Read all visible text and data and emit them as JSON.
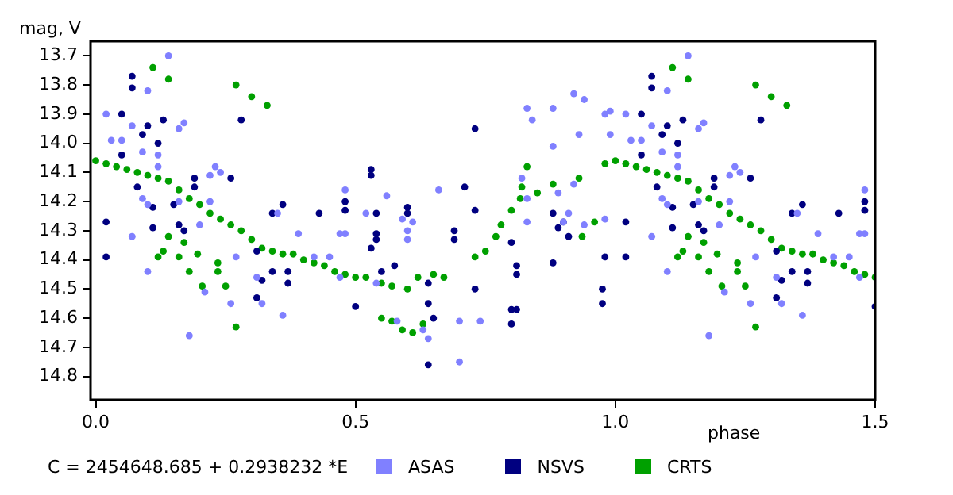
{
  "chart_data": {
    "type": "scatter",
    "xlabel": "phase",
    "ylabel": "mag, V",
    "xlim": [
      -0.01,
      1.5
    ],
    "xticks": [
      {
        "value": 0,
        "label": "0.0"
      },
      {
        "value": 0.5,
        "label": "0.5"
      },
      {
        "value": 1,
        "label": "1.0"
      },
      {
        "value": 1.5,
        "label": "1.5"
      }
    ],
    "ylim": [
      14.88,
      13.65
    ],
    "yticks": [
      13.7,
      13.8,
      13.9,
      {
        "value": 14,
        "label": "14.0"
      },
      14.1,
      14.2,
      14.3,
      14.4,
      14.5,
      14.6,
      14.7,
      14.8
    ],
    "grid": false,
    "legend": "bottom",
    "marker": "circle",
    "annotations": [
      "C = 2454648.685 + 0.2938232 *E"
    ],
    "series": [
      {
        "name": "ASAS",
        "color": "#8080ff",
        "x": [
          0.14,
          0.1,
          0.02,
          0.03,
          0.05,
          0.07,
          0.09,
          0.12,
          0.12,
          0.16,
          0.17,
          0.09,
          0.1,
          0.1,
          0.2,
          0.18,
          0.21,
          0.22,
          0.23,
          0.24,
          0.22,
          0.27,
          0.26,
          0.31,
          0.32,
          0.35,
          0.36,
          0.39,
          0.42,
          0.07,
          0.16,
          0.45,
          0.47,
          0.47,
          0.48,
          0.48,
          0.52,
          0.56,
          0.54,
          0.59,
          0.61,
          0.6,
          0.6,
          0.58,
          0.63,
          0.64,
          0.66,
          0.7,
          0.74,
          0.7,
          0.83,
          0.84,
          0.88,
          0.94,
          0.92,
          0.98,
          0.99,
          0.93,
          0.88,
          0.82,
          0.83,
          0.83,
          0.89,
          0.92,
          0.91,
          0.9,
          0.94,
          0.98,
          0.99,
          1.14,
          1.1,
          1.02,
          1.03,
          1.05,
          1.07,
          1.09,
          1.12,
          1.12,
          1.16,
          1.17,
          1.09,
          1.1,
          1.1,
          1.2,
          1.18,
          1.21,
          1.22,
          1.23,
          1.24,
          1.22,
          1.27,
          1.26,
          1.31,
          1.32,
          1.35,
          1.36,
          1.39,
          1.42,
          1.07,
          1.16,
          1.45,
          1.47,
          1.47,
          1.48,
          1.48
        ],
        "values": [
          13.7,
          13.82,
          13.9,
          13.99,
          13.99,
          13.94,
          14.03,
          14.04,
          14.08,
          13.95,
          13.93,
          14.19,
          14.21,
          14.44,
          14.28,
          14.66,
          14.51,
          14.11,
          14.08,
          14.1,
          14.2,
          14.39,
          14.55,
          14.46,
          14.55,
          14.24,
          14.59,
          14.31,
          14.39,
          14.32,
          14.2,
          14.39,
          14.31,
          14.46,
          14.16,
          14.31,
          14.24,
          14.18,
          14.48,
          14.26,
          14.27,
          14.33,
          14.3,
          14.61,
          14.64,
          14.67,
          14.16,
          14.61,
          14.61,
          14.75,
          13.88,
          13.92,
          13.88,
          13.85,
          13.83,
          13.9,
          13.89,
          13.97,
          14.01,
          14.12,
          14.19,
          14.27,
          14.17,
          14.14,
          14.24,
          14.27,
          14.28,
          14.26,
          13.97,
          13.7,
          13.82,
          13.9,
          13.99,
          13.99,
          13.94,
          14.03,
          14.04,
          14.08,
          13.95,
          13.93,
          14.19,
          14.21,
          14.44,
          14.28,
          14.66,
          14.51,
          14.11,
          14.08,
          14.1,
          14.2,
          14.39,
          14.55,
          14.46,
          14.55,
          14.24,
          14.59,
          14.31,
          14.39,
          14.32,
          14.2,
          14.39,
          14.31,
          14.46,
          14.16,
          14.31
        ]
      },
      {
        "name": "NSVS",
        "color": "#000080",
        "x": [
          0.07,
          0.07,
          0.05,
          0.1,
          0.12,
          0.13,
          0.09,
          0.05,
          0.02,
          0.02,
          0.08,
          0.11,
          0.11,
          0.15,
          0.16,
          0.17,
          0.19,
          0.19,
          0.26,
          0.28,
          0.31,
          0.34,
          0.36,
          0.34,
          0.37,
          0.37,
          0.32,
          0.31,
          0.43,
          0.48,
          0.48,
          0.53,
          0.53,
          0.54,
          0.54,
          0.54,
          0.53,
          0.575,
          0.55,
          0.5,
          0.6,
          0.6,
          0.64,
          0.64,
          0.65,
          0.64,
          0.69,
          0.69,
          0.73,
          0.71,
          0.73,
          0.73,
          0.8,
          0.81,
          0.8,
          0.8,
          0.81,
          0.81,
          0.88,
          0.88,
          0.89,
          0.9,
          0.91,
          0.975,
          0.975,
          0.98,
          1.07,
          1.07,
          1.05,
          1.1,
          1.12,
          1.13,
          1.09,
          1.05,
          1.02,
          1.02,
          1.08,
          1.11,
          1.11,
          1.15,
          1.16,
          1.17,
          1.19,
          1.19,
          1.26,
          1.28,
          1.31,
          1.34,
          1.36,
          1.34,
          1.37,
          1.37,
          1.32,
          1.31,
          1.43,
          1.48,
          1.48,
          1.5
        ],
        "values": [
          13.77,
          13.81,
          13.9,
          13.94,
          14.0,
          13.92,
          13.97,
          14.04,
          14.27,
          14.39,
          14.15,
          14.22,
          14.29,
          14.21,
          14.28,
          14.3,
          14.15,
          14.12,
          14.12,
          13.92,
          14.37,
          14.24,
          14.21,
          14.44,
          14.44,
          14.48,
          14.47,
          14.53,
          14.24,
          14.2,
          14.23,
          14.09,
          14.11,
          14.24,
          14.31,
          14.33,
          14.36,
          14.42,
          14.44,
          14.56,
          14.22,
          14.24,
          14.48,
          14.55,
          14.6,
          14.76,
          14.3,
          14.33,
          13.95,
          14.15,
          14.23,
          14.5,
          14.57,
          14.57,
          14.62,
          14.34,
          14.42,
          14.45,
          14.24,
          14.41,
          14.29,
          14.27,
          14.32,
          14.5,
          14.55,
          14.39,
          13.77,
          13.81,
          13.9,
          13.94,
          14.0,
          13.92,
          13.97,
          14.04,
          14.27,
          14.39,
          14.15,
          14.22,
          14.29,
          14.21,
          14.28,
          14.3,
          14.15,
          14.12,
          14.12,
          13.92,
          14.37,
          14.24,
          14.21,
          14.44,
          14.44,
          14.48,
          14.47,
          14.53,
          14.24,
          14.2,
          14.23,
          14.56
        ]
      },
      {
        "name": "CRTS",
        "color": "#00a000",
        "x": [
          0.0,
          0.02,
          0.04,
          0.06,
          0.08,
          0.1,
          0.12,
          0.14,
          0.16,
          0.18,
          0.2,
          0.22,
          0.24,
          0.26,
          0.28,
          0.3,
          0.32,
          0.34,
          0.36,
          0.38,
          0.4,
          0.42,
          0.44,
          0.46,
          0.48,
          0.5,
          0.52,
          0.55,
          0.57,
          0.6,
          0.55,
          0.57,
          0.59,
          0.61,
          0.63,
          0.62,
          0.65,
          0.67,
          0.73,
          0.75,
          0.77,
          0.78,
          0.8,
          0.817,
          0.85,
          0.88,
          0.93,
          0.98,
          0.11,
          0.14,
          0.27,
          0.3,
          0.33,
          0.12,
          0.13,
          0.14,
          0.16,
          0.17,
          0.18,
          0.196,
          0.205,
          0.235,
          0.235,
          0.25,
          0.27,
          0.83,
          0.82,
          0.936,
          0.96,
          1.0,
          1.02,
          1.04,
          1.06,
          1.08,
          1.1,
          1.12,
          1.14,
          1.16,
          1.18,
          1.2,
          1.22,
          1.24,
          1.26,
          1.28,
          1.3,
          1.32,
          1.34,
          1.36,
          1.38,
          1.4,
          1.42,
          1.44,
          1.46,
          1.48,
          1.5,
          1.11,
          1.14,
          1.27,
          1.3,
          1.33,
          1.12,
          1.13,
          1.14,
          1.16,
          1.17,
          1.18,
          1.196,
          1.205,
          1.235,
          1.235,
          1.25,
          1.27
        ],
        "values": [
          14.06,
          14.07,
          14.08,
          14.09,
          14.1,
          14.11,
          14.12,
          14.13,
          14.16,
          14.19,
          14.21,
          14.24,
          14.26,
          14.28,
          14.3,
          14.33,
          14.36,
          14.37,
          14.38,
          14.38,
          14.4,
          14.41,
          14.42,
          14.44,
          14.45,
          14.46,
          14.46,
          14.48,
          14.49,
          14.5,
          14.6,
          14.61,
          14.64,
          14.65,
          14.62,
          14.46,
          14.45,
          14.46,
          14.39,
          14.37,
          14.32,
          14.28,
          14.23,
          14.19,
          14.17,
          14.14,
          14.12,
          14.07,
          13.74,
          13.78,
          13.8,
          13.84,
          13.87,
          14.39,
          14.37,
          14.32,
          14.39,
          14.34,
          14.44,
          14.38,
          14.49,
          14.41,
          14.44,
          14.49,
          14.63,
          14.08,
          14.15,
          14.32,
          14.27,
          14.06,
          14.07,
          14.08,
          14.09,
          14.1,
          14.11,
          14.12,
          14.13,
          14.16,
          14.19,
          14.21,
          14.24,
          14.26,
          14.28,
          14.3,
          14.33,
          14.36,
          14.37,
          14.38,
          14.38,
          14.4,
          14.41,
          14.42,
          14.44,
          14.45,
          14.46,
          13.74,
          13.78,
          13.8,
          13.84,
          13.87,
          14.39,
          14.37,
          14.32,
          14.39,
          14.34,
          14.44,
          14.38,
          14.49,
          14.41,
          14.44,
          14.49,
          14.63
        ]
      }
    ]
  }
}
